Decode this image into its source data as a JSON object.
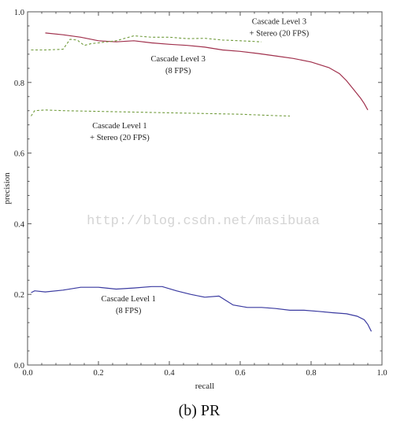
{
  "watermark": "http://blog.csdn.net/masibuaa",
  "caption": "(b) PR",
  "colors": {
    "frame": "#555555",
    "cascade1_8fps": "#3a3aa0",
    "cascade3_8fps": "#a0304c",
    "stereo_dashed": "#6f9a3a"
  },
  "chart_data": {
    "type": "line",
    "xlabel": "recall",
    "ylabel": "precision",
    "xlim": [
      0,
      1
    ],
    "ylim": [
      0,
      1
    ],
    "xticks": [
      "0.0",
      "0.2",
      "0.4",
      "0.6",
      "0.8",
      "1.0"
    ],
    "yticks": [
      "0.0",
      "0.2",
      "0.4",
      "0.6",
      "0.8",
      "1.0"
    ],
    "grid": false,
    "series": [
      {
        "color": "#3a3aa0",
        "dash": false,
        "x": [
          0.01,
          0.02,
          0.05,
          0.1,
          0.15,
          0.2,
          0.25,
          0.3,
          0.35,
          0.38,
          0.42,
          0.46,
          0.5,
          0.54,
          0.58,
          0.62,
          0.66,
          0.7,
          0.74,
          0.78,
          0.82,
          0.86,
          0.9,
          0.93,
          0.95,
          0.96,
          0.97
        ],
        "y": [
          0.205,
          0.21,
          0.207,
          0.212,
          0.22,
          0.22,
          0.215,
          0.218,
          0.222,
          0.222,
          0.21,
          0.2,
          0.192,
          0.195,
          0.17,
          0.163,
          0.163,
          0.16,
          0.155,
          0.155,
          0.152,
          0.148,
          0.145,
          0.138,
          0.128,
          0.115,
          0.095
        ]
      },
      {
        "color": "#a0304c",
        "dash": false,
        "x": [
          0.05,
          0.1,
          0.15,
          0.2,
          0.25,
          0.3,
          0.35,
          0.4,
          0.45,
          0.5,
          0.55,
          0.6,
          0.65,
          0.7,
          0.75,
          0.8,
          0.85,
          0.88,
          0.9,
          0.92,
          0.94,
          0.95,
          0.96
        ],
        "y": [
          0.94,
          0.935,
          0.928,
          0.918,
          0.915,
          0.918,
          0.912,
          0.908,
          0.905,
          0.9,
          0.892,
          0.888,
          0.882,
          0.875,
          0.868,
          0.858,
          0.842,
          0.825,
          0.805,
          0.78,
          0.755,
          0.74,
          0.722
        ]
      },
      {
        "color": "#6f9a3a",
        "dash": true,
        "x": [
          0.01,
          0.05,
          0.1,
          0.12,
          0.14,
          0.16,
          0.18,
          0.2,
          0.25,
          0.3,
          0.35,
          0.4,
          0.45,
          0.5,
          0.55,
          0.6,
          0.66
        ],
        "y": [
          0.892,
          0.892,
          0.894,
          0.922,
          0.92,
          0.905,
          0.91,
          0.912,
          0.918,
          0.932,
          0.928,
          0.928,
          0.924,
          0.925,
          0.92,
          0.918,
          0.915
        ]
      },
      {
        "color": "#6f9a3a",
        "dash": true,
        "x": [
          0.01,
          0.02,
          0.05,
          0.1,
          0.2,
          0.3,
          0.4,
          0.5,
          0.6,
          0.7,
          0.74
        ],
        "y": [
          0.705,
          0.72,
          0.722,
          0.72,
          0.718,
          0.716,
          0.714,
          0.712,
          0.71,
          0.706,
          0.705
        ]
      }
    ],
    "annotations": [
      {
        "lines": [
          "Cascade Level 3",
          "+ Stereo (20 FPS)"
        ],
        "x": 0.71,
        "y": 0.965
      },
      {
        "lines": [
          "Cascade Level 3",
          "(8 FPS)"
        ],
        "x": 0.425,
        "y": 0.86
      },
      {
        "lines": [
          "Cascade Level 1",
          "+ Stereo (20 FPS)"
        ],
        "x": 0.26,
        "y": 0.67
      },
      {
        "lines": [
          "Cascade Level 1",
          "(8 FPS)"
        ],
        "x": 0.285,
        "y": 0.18
      }
    ]
  }
}
